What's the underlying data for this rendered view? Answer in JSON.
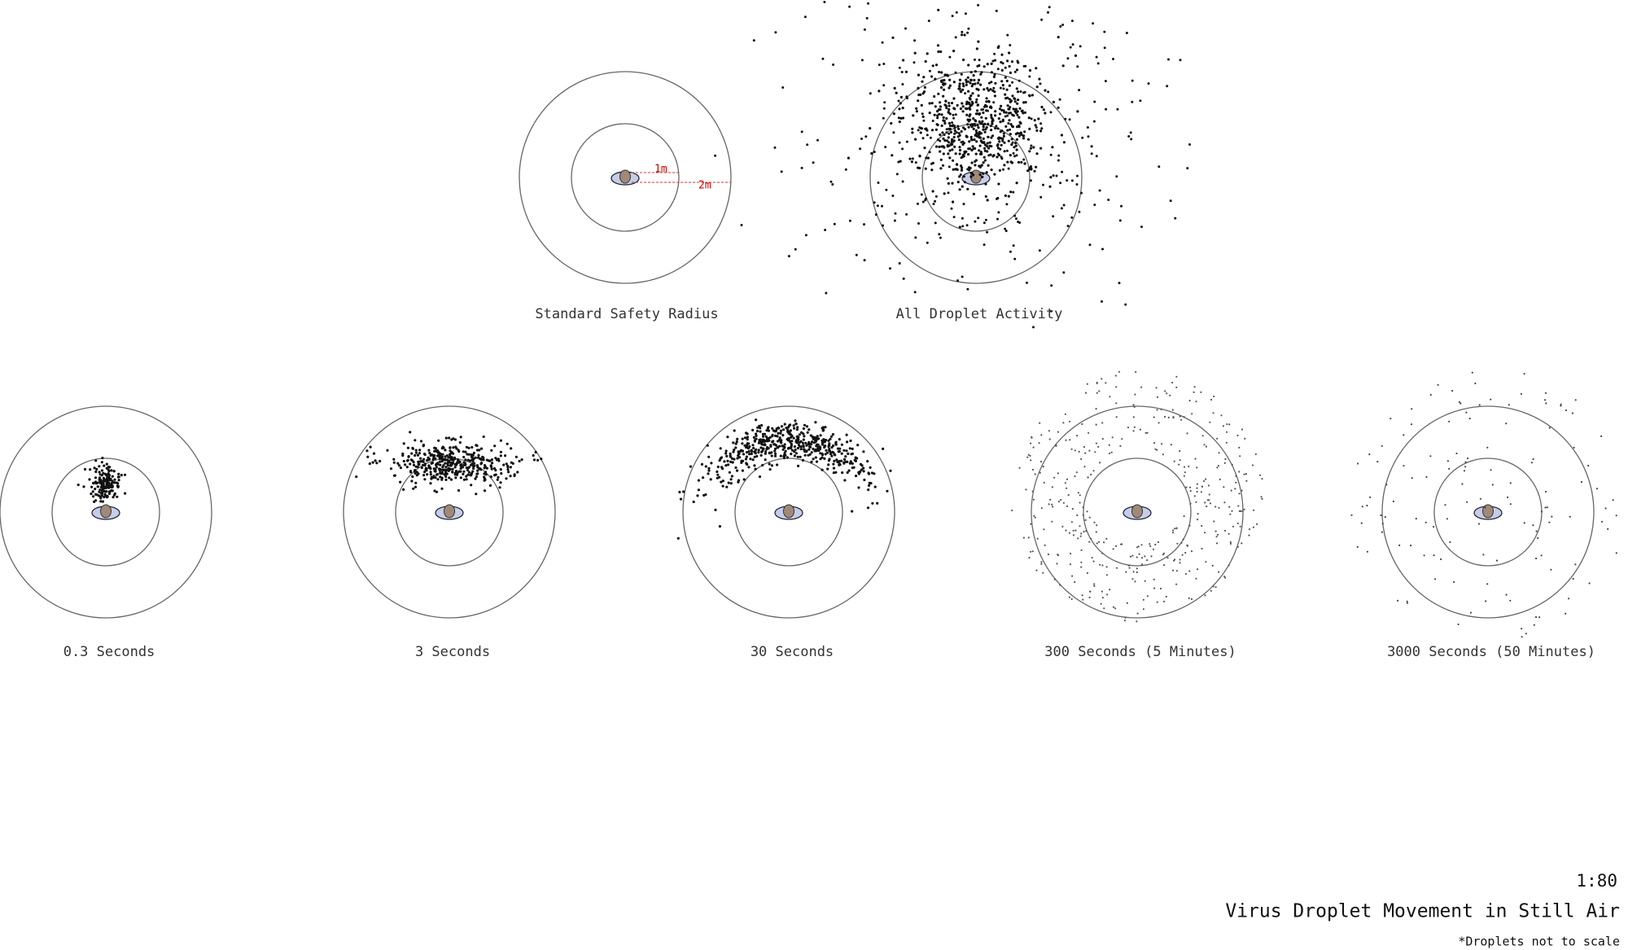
{
  "panels": [
    {
      "label": "Standard Safety Radius"
    },
    {
      "label": "All Droplet Activity"
    },
    {
      "label": "0.3 Seconds"
    },
    {
      "label": "3 Seconds"
    },
    {
      "label": "30 Seconds"
    },
    {
      "label": "300 Seconds (5 Minutes)"
    },
    {
      "label": "3000 Seconds (50 Minutes)"
    }
  ],
  "annotations": {
    "inner": "1m",
    "outer": "2m"
  },
  "footer": {
    "scale": "1:80",
    "title": "Virus Droplet Movement in Still Air",
    "note": "*Droplets not to scale"
  }
}
